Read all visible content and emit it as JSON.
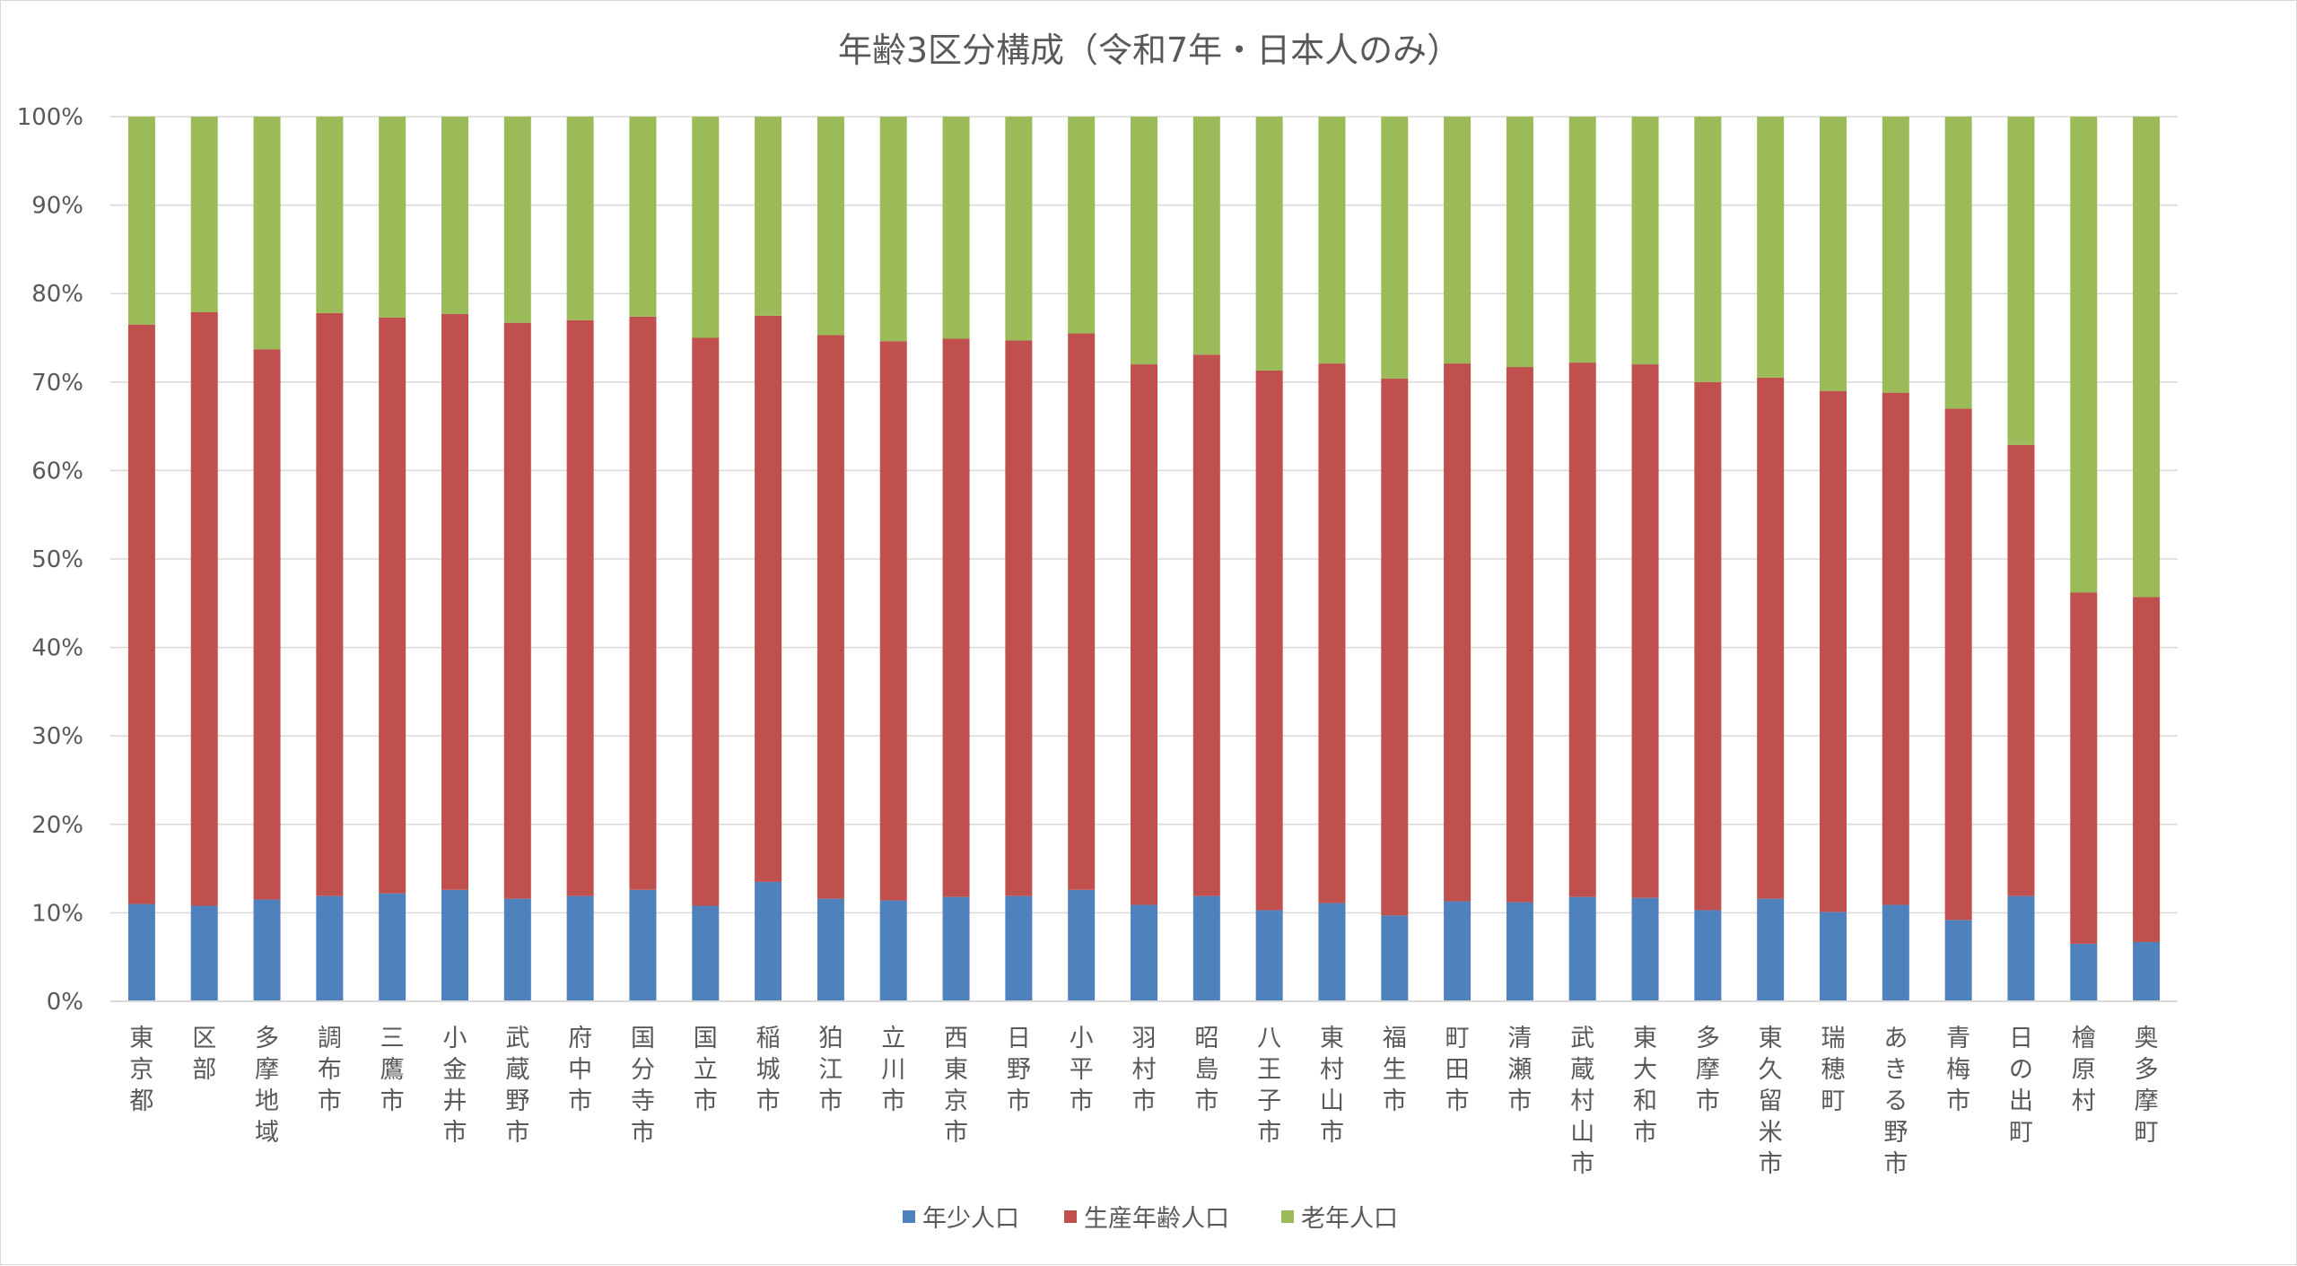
{
  "chart_data": {
    "type": "bar",
    "stacked": true,
    "percent": true,
    "title": "年齢3区分構成（令和7年・日本人のみ）",
    "xlabel": "",
    "ylabel": "",
    "ylim": [
      0,
      100
    ],
    "yticks": [
      "0%",
      "10%",
      "20%",
      "30%",
      "40%",
      "50%",
      "60%",
      "70%",
      "80%",
      "90%",
      "100%"
    ],
    "grid": true,
    "legend_position": "bottom",
    "categories": [
      "東京都",
      "区部",
      "多摩地域",
      "調布市",
      "三鷹市",
      "小金井市",
      "武蔵野市",
      "府中市",
      "国分寺市",
      "国立市",
      "稲城市",
      "狛江市",
      "立川市",
      "西東京市",
      "日野市",
      "小平市",
      "羽村市",
      "昭島市",
      "八王子市",
      "東村山市",
      "福生市",
      "町田市",
      "清瀬市",
      "武蔵村山市",
      "東大和市",
      "多摩市",
      "東久留米市",
      "瑞穂町",
      "あきる野市",
      "青梅市",
      "日の出町",
      "檜原村",
      "奥多摩町"
    ],
    "series": [
      {
        "name": "年少人口",
        "color": "#4f81bd",
        "values": [
          11.0,
          10.8,
          11.5,
          11.9,
          12.2,
          12.6,
          11.6,
          11.9,
          12.6,
          10.8,
          13.5,
          11.6,
          11.4,
          11.8,
          11.9,
          12.6,
          10.9,
          11.9,
          10.3,
          11.1,
          9.7,
          11.3,
          11.2,
          11.8,
          11.7,
          10.3,
          11.6,
          10.1,
          10.9,
          9.2,
          11.9,
          6.5,
          6.7
        ]
      },
      {
        "name": "生産年齢人口",
        "color": "#c0504d",
        "values": [
          65.5,
          67.1,
          62.2,
          65.9,
          65.1,
          65.1,
          65.1,
          65.1,
          64.8,
          64.2,
          64.0,
          63.7,
          63.2,
          63.1,
          62.8,
          62.9,
          61.1,
          61.2,
          61.0,
          61.0,
          60.7,
          60.8,
          60.5,
          60.4,
          60.3,
          59.7,
          58.9,
          58.9,
          57.9,
          57.8,
          51.0,
          39.7,
          39.0
        ]
      },
      {
        "name": "老年人口",
        "color": "#9bbb59",
        "values": [
          23.5,
          22.1,
          26.3,
          22.2,
          22.7,
          22.3,
          23.3,
          23.0,
          22.6,
          25.0,
          22.5,
          24.7,
          25.4,
          25.1,
          25.3,
          24.5,
          28.0,
          26.9,
          28.7,
          27.9,
          29.6,
          27.9,
          28.3,
          27.8,
          28.0,
          30.0,
          29.5,
          31.0,
          31.2,
          33.0,
          37.1,
          53.8,
          54.3
        ]
      }
    ]
  }
}
